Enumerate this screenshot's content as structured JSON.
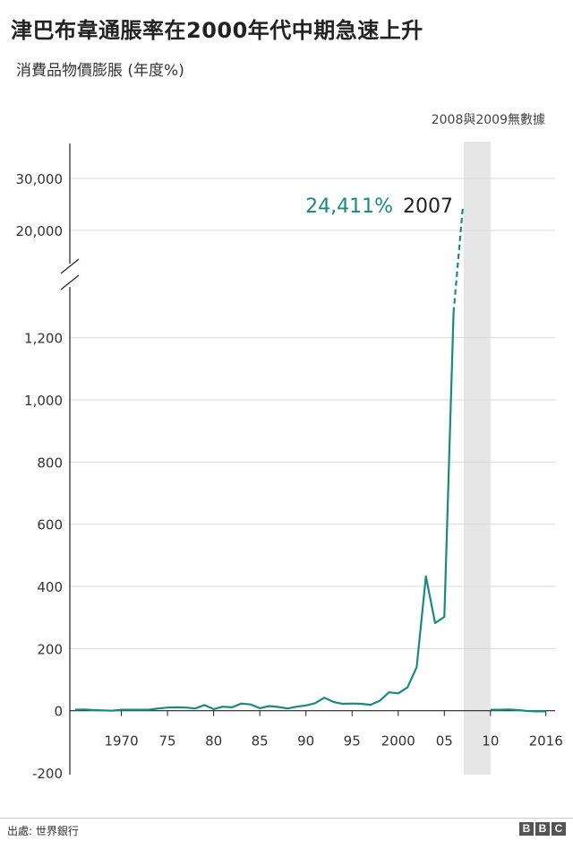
{
  "title": "津巴布韋通脹率在2000年代中期急速上升",
  "subtitle": "消費品物價膨脹 (年度%)",
  "source": "出處: 世界銀行",
  "logo_letters": [
    "B",
    "B",
    "C"
  ],
  "colors": {
    "line": "#1a8a7e",
    "annotation_value": "#1a8a7e",
    "no_data_band": "#e6e6e6",
    "grid": "#d9d9d9",
    "axis": "#222222"
  },
  "chart_data": {
    "type": "line",
    "title": "津巴布韋通脹率在2000年代中期急速上升",
    "subtitle": "消費品物價膨脹 (年度%)",
    "ylabel": "",
    "xlim": [
      1965,
      2017
    ],
    "ylim": [
      -200,
      30000
    ],
    "axis_break": {
      "below": 1300,
      "above": 18000
    },
    "grid": true,
    "yticks": [
      {
        "value": -200,
        "label": "-200"
      },
      {
        "value": 0,
        "label": "0"
      },
      {
        "value": 200,
        "label": "200"
      },
      {
        "value": 400,
        "label": "400"
      },
      {
        "value": 600,
        "label": "600"
      },
      {
        "value": 800,
        "label": "800"
      },
      {
        "value": 1000,
        "label": "1,000"
      },
      {
        "value": 1200,
        "label": "1,200"
      },
      {
        "value": 20000,
        "label": "20,000"
      },
      {
        "value": 30000,
        "label": "30,000"
      }
    ],
    "xticks": [
      {
        "value": 1970,
        "label": "1970"
      },
      {
        "value": 1975,
        "label": "75"
      },
      {
        "value": 1980,
        "label": "80"
      },
      {
        "value": 1985,
        "label": "85"
      },
      {
        "value": 1990,
        "label": "90"
      },
      {
        "value": 1995,
        "label": "95"
      },
      {
        "value": 2000,
        "label": "2000"
      },
      {
        "value": 2005,
        "label": "05"
      },
      {
        "value": 2010,
        "label": "10"
      },
      {
        "value": 2016,
        "label": "2016"
      }
    ],
    "no_data_band": {
      "from": 2007.1,
      "to": 2010.0,
      "label": "2008與2009無數據"
    },
    "annotation": {
      "x": 2007,
      "y": 24411,
      "value_label": "24,411%",
      "year_label": "2007"
    },
    "series": [
      {
        "segments": [
          {
            "x": [
              1965,
              1966,
              1967,
              1968,
              1969,
              1970,
              1971,
              1972,
              1973,
              1974,
              1975,
              1976,
              1977,
              1978,
              1979,
              1980,
              1981,
              1982,
              1983,
              1984,
              1985,
              1986,
              1987,
              1988,
              1989,
              1990,
              1991,
              1992,
              1993,
              1994,
              1995,
              1996,
              1997,
              1998,
              1999,
              2000,
              2001,
              2002,
              2003,
              2004,
              2005,
              2006
            ],
            "y": [
              3,
              4,
              2,
              1,
              0,
              3,
              3,
              3,
              3,
              7,
              10,
              11,
              10,
              7,
              18,
              5,
              13,
              11,
              23,
              20,
              8,
              15,
              12,
              7,
              13,
              17,
              24,
              42,
              28,
              22,
              23,
              22,
              19,
              32,
              59,
              56,
              75,
              140,
              432,
              282,
              302,
              1281
            ]
          },
          {
            "x": [
              2010,
              2011,
              2012,
              2013,
              2014,
              2015,
              2016
            ],
            "y": [
              3,
              3,
              4,
              2,
              -1,
              -2,
              -2
            ]
          }
        ],
        "dashed_segment": {
          "x": [
            2006,
            2007
          ],
          "y": [
            1281,
            24411
          ]
        }
      }
    ]
  }
}
